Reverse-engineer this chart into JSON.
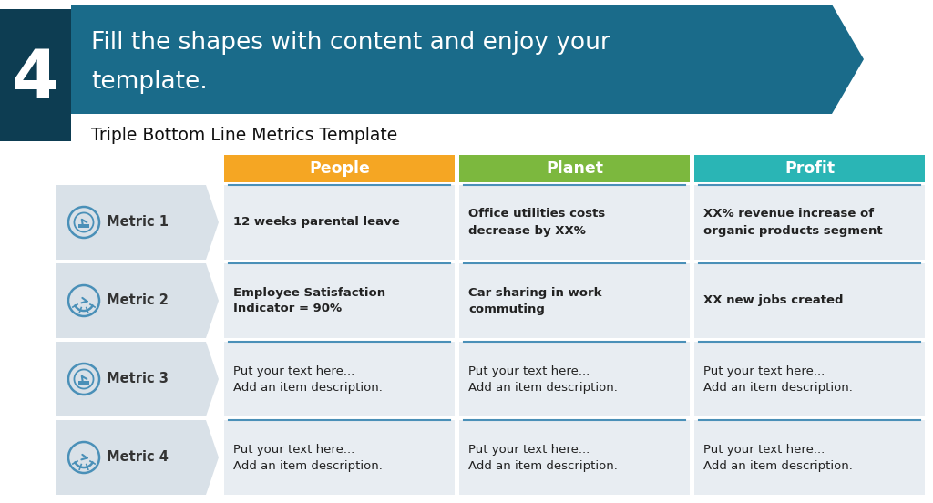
{
  "bg_color": "#ffffff",
  "banner_color": "#1a6b8a",
  "banner_dark_color": "#0d3d52",
  "step_number": "4",
  "banner_text_line1": "Fill the shapes with content and enjoy your",
  "banner_text_line2": "template.",
  "subtitle": "Triple Bottom Line Metrics Template",
  "columns": [
    "People",
    "Planet",
    "Profit"
  ],
  "column_colors": [
    "#f5a623",
    "#7cb83e",
    "#2ab5b5"
  ],
  "metrics": [
    "Metric 1",
    "Metric 2",
    "Metric 3",
    "Metric 4"
  ],
  "metric_bg": "#d9e1e8",
  "cell_bg": "#e8edf2",
  "separator_color": "#4a90b8",
  "icon_color": "#4a90b8",
  "text_color": "#222222",
  "cell_data": [
    [
      "12 weeks parental leave",
      "Office utilities costs\ndecrease by XX%",
      "XX% revenue increase of\norganic products segment"
    ],
    [
      "Employee Satisfaction\nIndicator = 90%",
      "Car sharing in work\ncommuting",
      "XX new jobs created"
    ],
    [
      "Put your text here...\nAdd an item description.",
      "Put your text here...\nAdd an item description.",
      "Put your text here...\nAdd an item description."
    ],
    [
      "Put your text here...\nAdd an item description.",
      "Put your text here...\nAdd an item description.",
      "Put your text here...\nAdd an item description."
    ]
  ],
  "bold_rows": [
    0,
    1
  ]
}
